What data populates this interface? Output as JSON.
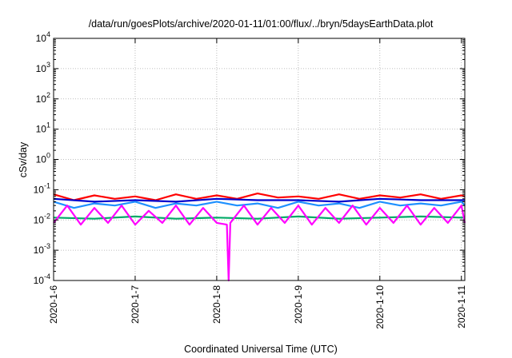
{
  "chart_data": {
    "type": "line",
    "title": "/data/run/goesPlots/archive/2020-01-11/01:00/flux/../bryn/5daysEarthData.plot",
    "xlabel": "Coordinated Universal Time (UTC)",
    "ylabel": "cSv/day",
    "x_type": "date",
    "xlim": [
      "2020-01-06T00:00",
      "2020-01-11T01:00"
    ],
    "x_ticks": [
      {
        "value": "2020-01-06",
        "label": "2020-1-6"
      },
      {
        "value": "2020-01-07",
        "label": "2020-1-7"
      },
      {
        "value": "2020-01-08",
        "label": "2020-1-8"
      },
      {
        "value": "2020-01-09",
        "label": "2020-1-9"
      },
      {
        "value": "2020-01-10",
        "label": "2020-1-10"
      },
      {
        "value": "2020-01-11",
        "label": "2020-1-11"
      }
    ],
    "y_scale": "log",
    "ylim": [
      0.0001,
      10000
    ],
    "y_ticks": [
      {
        "value": 0.0001,
        "base": "10",
        "exp": "-4"
      },
      {
        "value": 0.001,
        "base": "10",
        "exp": "-3"
      },
      {
        "value": 0.01,
        "base": "10",
        "exp": "-2"
      },
      {
        "value": 0.1,
        "base": "10",
        "exp": "-1"
      },
      {
        "value": 1,
        "base": "10",
        "exp": "0"
      },
      {
        "value": 10,
        "base": "10",
        "exp": "1"
      },
      {
        "value": 100,
        "base": "10",
        "exp": "2"
      },
      {
        "value": 1000,
        "base": "10",
        "exp": "3"
      },
      {
        "value": 10000,
        "base": "10",
        "exp": "4"
      }
    ],
    "grid": true,
    "legend": "none",
    "series": [
      {
        "color": "#ff0000",
        "x": [
          "2020-01-06T00:00",
          "2020-01-06T06:00",
          "2020-01-06T12:00",
          "2020-01-06T18:00",
          "2020-01-07T00:00",
          "2020-01-07T06:00",
          "2020-01-07T12:00",
          "2020-01-07T18:00",
          "2020-01-08T00:00",
          "2020-01-08T06:00",
          "2020-01-08T12:00",
          "2020-01-08T18:00",
          "2020-01-09T00:00",
          "2020-01-09T06:00",
          "2020-01-09T12:00",
          "2020-01-09T18:00",
          "2020-01-10T00:00",
          "2020-01-10T06:00",
          "2020-01-10T12:00",
          "2020-01-10T18:00",
          "2020-01-11T00:00",
          "2020-01-11T01:00"
        ],
        "y": [
          0.07,
          0.045,
          0.065,
          0.05,
          0.06,
          0.045,
          0.07,
          0.05,
          0.065,
          0.05,
          0.075,
          0.055,
          0.06,
          0.05,
          0.07,
          0.05,
          0.065,
          0.055,
          0.07,
          0.05,
          0.065,
          0.06
        ]
      },
      {
        "color": "#0000cc",
        "x": [
          "2020-01-06T00:00",
          "2020-01-06T12:00",
          "2020-01-07T00:00",
          "2020-01-07T12:00",
          "2020-01-08T00:00",
          "2020-01-08T12:00",
          "2020-01-09T00:00",
          "2020-01-09T12:00",
          "2020-01-10T00:00",
          "2020-01-10T12:00",
          "2020-01-11T00:00",
          "2020-01-11T01:00"
        ],
        "y": [
          0.05,
          0.04,
          0.045,
          0.04,
          0.05,
          0.045,
          0.045,
          0.04,
          0.05,
          0.045,
          0.045,
          0.045
        ]
      },
      {
        "color": "#1e90ff",
        "x": [
          "2020-01-06T00:00",
          "2020-01-06T06:00",
          "2020-01-06T12:00",
          "2020-01-06T18:00",
          "2020-01-07T00:00",
          "2020-01-07T06:00",
          "2020-01-07T12:00",
          "2020-01-07T18:00",
          "2020-01-08T00:00",
          "2020-01-08T06:00",
          "2020-01-08T12:00",
          "2020-01-08T18:00",
          "2020-01-09T00:00",
          "2020-01-09T06:00",
          "2020-01-09T12:00",
          "2020-01-09T18:00",
          "2020-01-10T00:00",
          "2020-01-10T06:00",
          "2020-01-10T12:00",
          "2020-01-10T18:00",
          "2020-01-11T00:00",
          "2020-01-11T01:00"
        ],
        "y": [
          0.04,
          0.025,
          0.035,
          0.03,
          0.04,
          0.025,
          0.035,
          0.03,
          0.04,
          0.03,
          0.035,
          0.025,
          0.04,
          0.03,
          0.035,
          0.025,
          0.04,
          0.03,
          0.035,
          0.03,
          0.04,
          0.03
        ]
      },
      {
        "color": "#00aa66",
        "x": [
          "2020-01-06T00:00",
          "2020-01-06T12:00",
          "2020-01-07T00:00",
          "2020-01-07T12:00",
          "2020-01-08T00:00",
          "2020-01-08T12:00",
          "2020-01-09T00:00",
          "2020-01-09T12:00",
          "2020-01-10T00:00",
          "2020-01-10T12:00",
          "2020-01-11T00:00",
          "2020-01-11T01:00"
        ],
        "y": [
          0.012,
          0.011,
          0.013,
          0.011,
          0.012,
          0.011,
          0.013,
          0.011,
          0.012,
          0.013,
          0.012,
          0.012
        ]
      },
      {
        "color": "#ff00ff",
        "x": [
          "2020-01-06T00:00",
          "2020-01-06T04:00",
          "2020-01-06T08:00",
          "2020-01-06T12:00",
          "2020-01-06T16:00",
          "2020-01-06T20:00",
          "2020-01-07T00:00",
          "2020-01-07T04:00",
          "2020-01-07T08:00",
          "2020-01-07T12:00",
          "2020-01-07T16:00",
          "2020-01-07T20:00",
          "2020-01-08T00:00",
          "2020-01-08T03:00",
          "2020-01-08T03:30",
          "2020-01-08T04:00",
          "2020-01-08T08:00",
          "2020-01-08T12:00",
          "2020-01-08T16:00",
          "2020-01-08T20:00",
          "2020-01-09T00:00",
          "2020-01-09T04:00",
          "2020-01-09T08:00",
          "2020-01-09T12:00",
          "2020-01-09T16:00",
          "2020-01-09T20:00",
          "2020-01-10T00:00",
          "2020-01-10T04:00",
          "2020-01-10T08:00",
          "2020-01-10T12:00",
          "2020-01-10T16:00",
          "2020-01-10T20:00",
          "2020-01-11T00:00",
          "2020-01-11T01:00"
        ],
        "y": [
          0.008,
          0.03,
          0.007,
          0.025,
          0.008,
          0.03,
          0.007,
          0.02,
          0.008,
          0.03,
          0.007,
          0.025,
          0.008,
          0.007,
          0.0001,
          0.008,
          0.03,
          0.007,
          0.025,
          0.008,
          0.03,
          0.007,
          0.025,
          0.008,
          0.03,
          0.007,
          0.025,
          0.008,
          0.03,
          0.007,
          0.025,
          0.008,
          0.03,
          0.008
        ]
      }
    ]
  }
}
